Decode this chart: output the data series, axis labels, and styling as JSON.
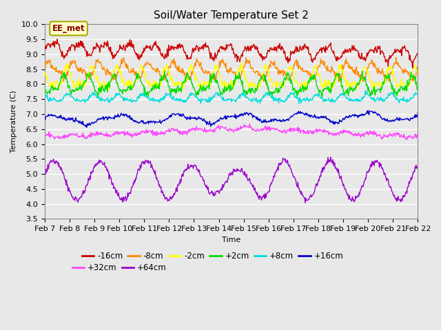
{
  "title": "Soil/Water Temperature Set 2",
  "xlabel": "Time",
  "ylabel": "Temperature (C)",
  "ylim": [
    3.5,
    10.0
  ],
  "yticks": [
    3.5,
    4.0,
    4.5,
    5.0,
    5.5,
    6.0,
    6.5,
    7.0,
    7.5,
    8.0,
    8.5,
    9.0,
    9.5,
    10.0
  ],
  "xtick_labels": [
    "Feb 7",
    "Feb 8",
    "Feb 9",
    "Feb 10",
    "Feb 11",
    "Feb 12",
    "Feb 13",
    "Feb 14",
    "Feb 15",
    "Feb 16",
    "Feb 17",
    "Feb 18",
    "Feb 19",
    "Feb 20",
    "Feb 21",
    "Feb 22"
  ],
  "series": [
    {
      "name": "-16cm",
      "color": "#cc0000",
      "base": 9.2,
      "amp": 0.18,
      "noise": 0.06,
      "trend": -0.012
    },
    {
      "name": "-8cm",
      "color": "#ff8800",
      "base": 8.48,
      "amp": 0.22,
      "noise": 0.06,
      "trend": -0.002
    },
    {
      "name": "-2cm",
      "color": "#ffff00",
      "base": 8.18,
      "amp": 0.27,
      "noise": 0.07,
      "trend": -0.002
    },
    {
      "name": "+2cm",
      "color": "#00dd00",
      "base": 7.96,
      "amp": 0.24,
      "noise": 0.07,
      "trend": -0.002
    },
    {
      "name": "+8cm",
      "color": "#00dddd",
      "base": 7.53,
      "amp": 0.1,
      "noise": 0.04,
      "trend": 0.0
    },
    {
      "name": "+16cm",
      "color": "#0000cc",
      "base": 6.8,
      "amp": 0.13,
      "noise": 0.03,
      "trend": 0.008
    },
    {
      "name": "+32cm",
      "color": "#ff44ff",
      "base": 6.22,
      "amp": 0.18,
      "noise": 0.04,
      "trend": 0.002
    },
    {
      "name": "+64cm",
      "color": "#9900cc",
      "base": 4.78,
      "amp": 0.7,
      "noise": 0.05,
      "trend": 0.0
    }
  ],
  "annotation_text": "EE_met",
  "background_color": "#e8e8e8",
  "grid_color": "#ffffff",
  "title_fontsize": 11,
  "axis_fontsize": 8,
  "legend_fontsize": 8.5
}
